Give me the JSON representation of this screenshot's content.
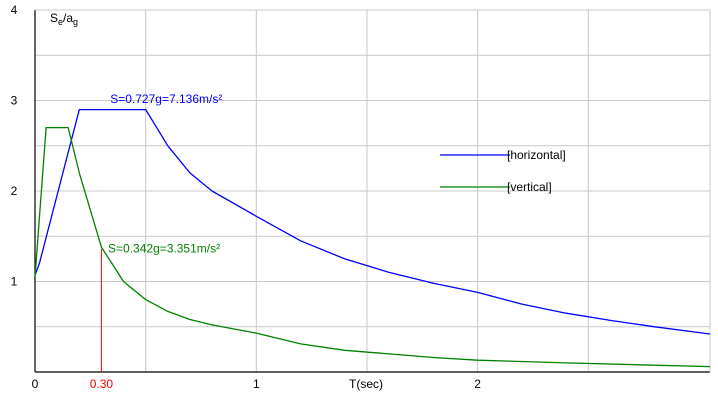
{
  "chart_data": {
    "type": "line",
    "ylabel_main": "S",
    "ylabel_sub1": "e",
    "ylabel_slash": "/a",
    "ylabel_sub2": "g",
    "xlabel": "T(sec)",
    "xlim": [
      0,
      3.05
    ],
    "ylim": [
      0,
      4
    ],
    "x_ticks": [
      0,
      1,
      2
    ],
    "x_tick_labels": [
      "0",
      "1",
      "2"
    ],
    "y_ticks": [
      1,
      2,
      3,
      4
    ],
    "y_tick_labels": [
      "1",
      "2",
      "3",
      "4"
    ],
    "grid": true,
    "legend_position": "right",
    "marker": {
      "x": 0.3,
      "label": "0.30",
      "color": "#ff0000"
    },
    "series": [
      {
        "name": "[horizontal]",
        "color": "#0000ff",
        "points": [
          {
            "x": 0.0,
            "y": 1.07
          },
          {
            "x": 0.02,
            "y": 1.2
          },
          {
            "x": 0.2,
            "y": 2.9
          },
          {
            "x": 0.5,
            "y": 2.9
          },
          {
            "x": 0.6,
            "y": 2.5
          },
          {
            "x": 0.7,
            "y": 2.2
          },
          {
            "x": 0.8,
            "y": 2.0
          },
          {
            "x": 1.0,
            "y": 1.72
          },
          {
            "x": 1.2,
            "y": 1.45
          },
          {
            "x": 1.4,
            "y": 1.25
          },
          {
            "x": 1.6,
            "y": 1.1
          },
          {
            "x": 1.8,
            "y": 0.98
          },
          {
            "x": 2.0,
            "y": 0.88
          },
          {
            "x": 2.2,
            "y": 0.75
          },
          {
            "x": 2.4,
            "y": 0.65
          },
          {
            "x": 2.6,
            "y": 0.57
          },
          {
            "x": 2.8,
            "y": 0.5
          },
          {
            "x": 3.05,
            "y": 0.42
          }
        ],
        "annotation": {
          "text": "S=0.727g=7.136m/s²",
          "x": 0.34,
          "y": 2.97
        }
      },
      {
        "name": "[vertical]",
        "color": "#008000",
        "points": [
          {
            "x": 0.0,
            "y": 1.05
          },
          {
            "x": 0.05,
            "y": 2.7
          },
          {
            "x": 0.15,
            "y": 2.7
          },
          {
            "x": 0.2,
            "y": 2.2
          },
          {
            "x": 0.3,
            "y": 1.38
          },
          {
            "x": 0.4,
            "y": 1.0
          },
          {
            "x": 0.5,
            "y": 0.8
          },
          {
            "x": 0.6,
            "y": 0.67
          },
          {
            "x": 0.7,
            "y": 0.58
          },
          {
            "x": 0.8,
            "y": 0.52
          },
          {
            "x": 1.0,
            "y": 0.43
          },
          {
            "x": 1.2,
            "y": 0.31
          },
          {
            "x": 1.4,
            "y": 0.24
          },
          {
            "x": 1.6,
            "y": 0.2
          },
          {
            "x": 1.8,
            "y": 0.16
          },
          {
            "x": 2.0,
            "y": 0.13
          },
          {
            "x": 2.4,
            "y": 0.1
          },
          {
            "x": 3.05,
            "y": 0.06
          }
        ],
        "annotation": {
          "text": "S=0.342g=3.351m/s²",
          "x": 0.33,
          "y": 1.32
        }
      }
    ]
  }
}
